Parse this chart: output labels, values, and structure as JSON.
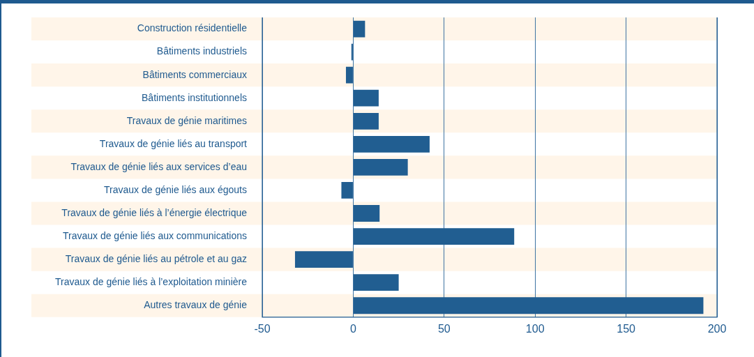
{
  "chart_data": {
    "type": "bar",
    "orientation": "horizontal",
    "categories": [
      "Construction résidentielle",
      "Bâtiments industriels",
      "Bâtiments commerciaux",
      "Bâtiments institutionnels",
      "Travaux de génie maritimes",
      "Travaux de génie liés au transport",
      "Travaux de génie liés aux services d’eau",
      "Travaux de génie liés aux égouts",
      "Travaux de génie liés à l’énergie électrique",
      "Travaux de génie liés aux communications",
      "Travaux de génie liés au pétrole et au gaz",
      "Travaux de génie liés à l’exploitation minière",
      "Autres travaux de génie"
    ],
    "values": [
      6.5,
      -1,
      -4,
      14,
      14,
      42,
      30,
      -6.5,
      14.5,
      88.5,
      -32,
      25,
      192.5
    ],
    "color": "#215e91",
    "xlim": [
      -50,
      200
    ],
    "xticks": [
      -50,
      0,
      50,
      100,
      150,
      200
    ],
    "grid": "x",
    "legend": false
  }
}
